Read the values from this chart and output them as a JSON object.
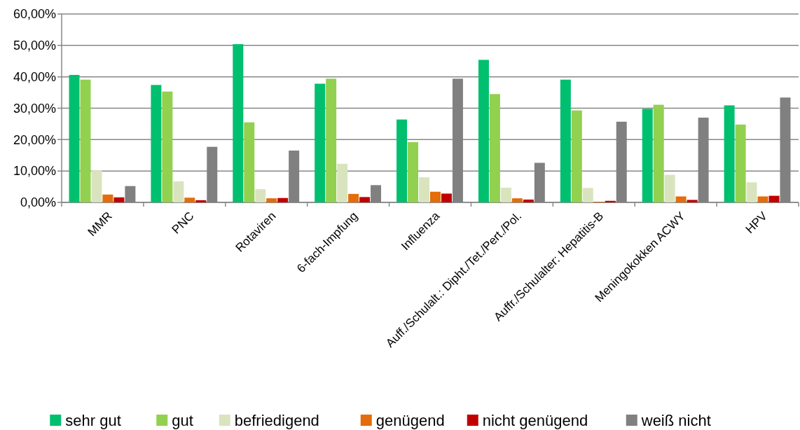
{
  "chart_data": {
    "type": "bar",
    "categories": [
      "MMR",
      "PNC",
      "Rotaviren",
      "6-fach-Impfung",
      "Influenza",
      "Auff./Schulalt.: Dipht./Tet./Pert./Pol.",
      "Auffr./Schulalter: Hepatitis-B",
      "Meningokokken ACWY",
      "HPV"
    ],
    "series": [
      {
        "name": "sehr gut",
        "color": "#00bf6f",
        "values": [
          40.6,
          37.4,
          50.4,
          37.8,
          26.4,
          45.4,
          39.1,
          29.8,
          30.9
        ]
      },
      {
        "name": "gut",
        "color": "#92d050",
        "values": [
          39.1,
          35.3,
          25.5,
          39.4,
          19.2,
          34.5,
          29.3,
          31.1,
          24.8
        ]
      },
      {
        "name": "befriedigend",
        "color": "#d9e4bf",
        "values": [
          10.2,
          6.7,
          4.2,
          12.3,
          8.0,
          4.7,
          4.6,
          8.8,
          6.4
        ]
      },
      {
        "name": "genügend",
        "color": "#e46c0a",
        "values": [
          2.5,
          1.5,
          1.3,
          2.7,
          3.4,
          1.3,
          0.2,
          1.9,
          1.9
        ]
      },
      {
        "name": "nicht genügend",
        "color": "#c00000",
        "values": [
          1.6,
          0.7,
          1.4,
          1.7,
          2.8,
          0.9,
          0.5,
          0.8,
          2.1
        ]
      },
      {
        "name": "weiß nicht",
        "color": "#808080",
        "values": [
          5.2,
          17.7,
          16.5,
          5.5,
          39.4,
          12.6,
          25.7,
          27.0,
          33.4
        ]
      }
    ],
    "ylim": [
      0,
      60
    ],
    "yticks": [
      {
        "value": 0,
        "label": "0,00%"
      },
      {
        "value": 10,
        "label": "10,00%"
      },
      {
        "value": 20,
        "label": "20,00%"
      },
      {
        "value": 30,
        "label": "30,00%"
      },
      {
        "value": 40,
        "label": "40,00%"
      },
      {
        "value": 50,
        "label": "50,00%"
      },
      {
        "value": 60,
        "label": "60,00%"
      }
    ],
    "grid": "y",
    "legend": "bottom"
  }
}
